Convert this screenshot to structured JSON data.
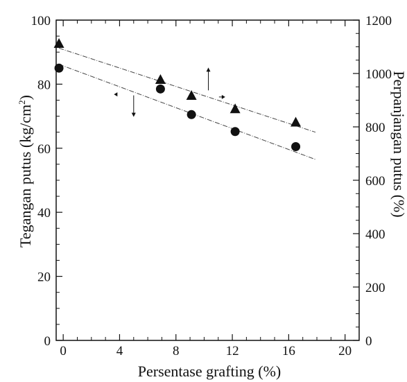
{
  "chart_data": {
    "type": "scatter",
    "xlabel": "Persentase grafting (%)",
    "ylabel_left": "Tegangan putus (kg/cm",
    "ylabel_left_sup": "2",
    "ylabel_left_end": ")",
    "ylabel_right": "Perpanjangan putus (%)",
    "xlim": [
      -0.5,
      21
    ],
    "ylim_left": [
      0,
      100
    ],
    "ylim_right": [
      0,
      1200
    ],
    "x_ticks": [
      0,
      4,
      8,
      12,
      16,
      20
    ],
    "y_left_ticks": [
      0,
      20,
      40,
      60,
      80,
      100
    ],
    "y_right_ticks": [
      0,
      200,
      400,
      600,
      800,
      1000,
      1200
    ],
    "series": [
      {
        "marker": "circle",
        "axis": "left",
        "x": [
          -0.3,
          6.9,
          9.1,
          12.2,
          16.5
        ],
        "y": [
          85,
          78.5,
          70.5,
          65.2,
          60.5
        ],
        "trendline": {
          "x": [
            -0.3,
            17.9
          ],
          "y": [
            86.2,
            56.5
          ]
        }
      },
      {
        "marker": "triangle",
        "axis": "right",
        "x": [
          -0.3,
          6.9,
          9.1,
          12.2,
          16.5
        ],
        "y": [
          1110,
          975,
          915,
          865,
          815
        ],
        "trendline": {
          "x": [
            -0.3,
            17.9
          ],
          "y": [
            1095,
            780
          ]
        }
      }
    ],
    "annotations": [
      {
        "type": "arrow",
        "direction": "left",
        "x": 3.6,
        "y_left": 76.8
      },
      {
        "type": "arrow",
        "direction": "down",
        "x": 5.0,
        "y_left": 76.5
      },
      {
        "type": "arrow",
        "direction": "up",
        "x": 10.3,
        "y_left": 78.5
      },
      {
        "type": "arrow",
        "direction": "right",
        "x": 11.3,
        "y_left": 76.0
      }
    ],
    "grid": false,
    "colors": {
      "axis": "#111111",
      "marker": "#111111",
      "trendline": "#444444"
    }
  }
}
